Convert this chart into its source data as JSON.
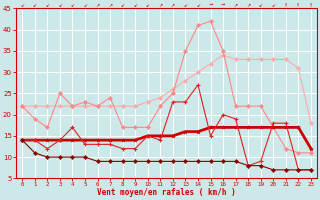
{
  "x": [
    0,
    1,
    2,
    3,
    4,
    5,
    6,
    7,
    8,
    9,
    10,
    11,
    12,
    13,
    14,
    15,
    16,
    17,
    18,
    19,
    20,
    21,
    22,
    23
  ],
  "line1": [
    22,
    22,
    22,
    22,
    22,
    22,
    22,
    22,
    22,
    22,
    23,
    24,
    26,
    28,
    30,
    32,
    34,
    33,
    33,
    33,
    33,
    33,
    31,
    18
  ],
  "line2": [
    22,
    19,
    17,
    25,
    22,
    23,
    22,
    24,
    17,
    17,
    17,
    22,
    25,
    35,
    41,
    42,
    35,
    22,
    22,
    22,
    17,
    12,
    11,
    11
  ],
  "line3": [
    14,
    14,
    14,
    14,
    14,
    14,
    14,
    14,
    14,
    14,
    15,
    15,
    15,
    16,
    16,
    17,
    17,
    17,
    17,
    17,
    17,
    17,
    17,
    12
  ],
  "line4": [
    14,
    14,
    12,
    14,
    17,
    13,
    13,
    13,
    12,
    12,
    15,
    14,
    23,
    23,
    27,
    15,
    20,
    19,
    8,
    9,
    18,
    18,
    7,
    7
  ],
  "line5": [
    14,
    11,
    10,
    10,
    10,
    10,
    9,
    9,
    9,
    9,
    9,
    9,
    9,
    9,
    9,
    9,
    9,
    9,
    8,
    8,
    7,
    7,
    7,
    7
  ],
  "bg_color": "#cce8e8",
  "grid_color": "#ffffff",
  "line1_color": "#ffaaaa",
  "line2_color": "#ff8888",
  "line3_color": "#cc0000",
  "line4_color": "#dd2222",
  "line5_color": "#880000",
  "xlabel": "Vent moyen/en rafales ( km/h )",
  "xlabel_color": "#cc0000",
  "tick_color": "#cc0000",
  "axis_color": "#cc0000",
  "ylim": [
    5,
    45
  ],
  "yticks": [
    5,
    10,
    15,
    20,
    25,
    30,
    35,
    40,
    45
  ],
  "xticks": [
    0,
    1,
    2,
    3,
    4,
    5,
    6,
    7,
    8,
    9,
    10,
    11,
    12,
    13,
    14,
    15,
    16,
    17,
    18,
    19,
    20,
    21,
    22,
    23
  ]
}
